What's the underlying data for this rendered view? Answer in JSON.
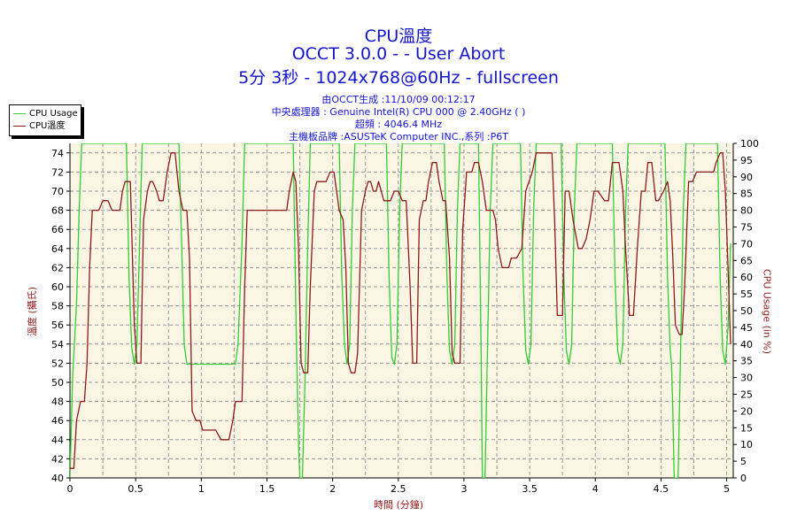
{
  "header": {
    "title": "CPU溫度",
    "subtitle1": "OCCT 3.0.0 -  - User Abort",
    "subtitle2": "5分 3秒 - 1024x768@60Hz - fullscreen",
    "info": [
      "由OCCT生成 :11/10/09 00:12:17",
      "中央處理器 : Genuine Intel(R) CPU 000 @ 2.40GHz ( )",
      "超頻 : 4046.4 MHz",
      "主機板品牌 :ASUSTeK Computer INC.,系列 :P6T"
    ]
  },
  "legend": {
    "items": [
      {
        "label": "CPU Usage",
        "color": "#33cc33"
      },
      {
        "label": "CPU溫度",
        "color": "#8b1a1a"
      }
    ]
  },
  "colors": {
    "title": "#1414c8",
    "plot_bg": "#fbf6e4",
    "grid": "#999999",
    "temp": "#8b1a1a",
    "usage": "#33cc33"
  },
  "chart_data": {
    "type": "line",
    "xlabel": "時間 (分鐘)",
    "ylabel_left": "溫度 (攝氏)",
    "ylabel_right": "CPU Usage (in %)",
    "xlim": [
      0,
      5.05
    ],
    "ylim_left": [
      40,
      75
    ],
    "ylim_right": [
      0,
      100
    ],
    "x_ticks": [
      "0",
      "0.5",
      "1",
      "1.5",
      "2",
      "2.5",
      "3",
      "3.5",
      "4",
      "4.5",
      "5"
    ],
    "y_left_ticks": [
      "40",
      "42",
      "44",
      "46",
      "48",
      "50",
      "52",
      "54",
      "56",
      "58",
      "60",
      "62",
      "64",
      "66",
      "68",
      "70",
      "72",
      "74"
    ],
    "y_right_ticks": [
      "0",
      "5",
      "10",
      "15",
      "20",
      "25",
      "30",
      "35",
      "40",
      "45",
      "50",
      "55",
      "60",
      "65",
      "70",
      "75",
      "80",
      "85",
      "90",
      "95",
      "100"
    ],
    "grid": true,
    "legend_position": "top-left",
    "series": [
      {
        "name": "CPU溫度",
        "axis": "left",
        "points": [
          [
            0.0,
            41
          ],
          [
            0.03,
            41
          ],
          [
            0.05,
            46
          ],
          [
            0.08,
            48
          ],
          [
            0.11,
            48
          ],
          [
            0.13,
            52
          ],
          [
            0.15,
            62
          ],
          [
            0.17,
            68
          ],
          [
            0.22,
            68
          ],
          [
            0.25,
            69
          ],
          [
            0.29,
            69
          ],
          [
            0.32,
            68
          ],
          [
            0.38,
            68
          ],
          [
            0.4,
            70
          ],
          [
            0.42,
            71
          ],
          [
            0.46,
            71
          ],
          [
            0.49,
            56
          ],
          [
            0.51,
            52
          ],
          [
            0.54,
            52
          ],
          [
            0.56,
            67
          ],
          [
            0.59,
            70
          ],
          [
            0.61,
            71
          ],
          [
            0.63,
            71
          ],
          [
            0.66,
            70
          ],
          [
            0.68,
            69
          ],
          [
            0.71,
            69
          ],
          [
            0.74,
            72
          ],
          [
            0.77,
            74
          ],
          [
            0.8,
            74
          ],
          [
            0.83,
            70
          ],
          [
            0.86,
            68
          ],
          [
            0.89,
            68
          ],
          [
            0.91,
            63
          ],
          [
            0.93,
            47
          ],
          [
            0.96,
            46
          ],
          [
            0.99,
            46
          ],
          [
            1.01,
            45
          ],
          [
            1.11,
            45
          ],
          [
            1.15,
            44
          ],
          [
            1.21,
            44
          ],
          [
            1.24,
            46
          ],
          [
            1.26,
            48
          ],
          [
            1.31,
            48
          ],
          [
            1.33,
            60
          ],
          [
            1.35,
            68
          ],
          [
            1.65,
            68
          ],
          [
            1.67,
            70
          ],
          [
            1.7,
            72
          ],
          [
            1.72,
            71
          ],
          [
            1.74,
            64
          ],
          [
            1.76,
            52
          ],
          [
            1.78,
            51
          ],
          [
            1.81,
            51
          ],
          [
            1.83,
            60
          ],
          [
            1.86,
            70
          ],
          [
            1.88,
            71
          ],
          [
            1.91,
            71
          ],
          [
            1.95,
            71
          ],
          [
            1.98,
            72
          ],
          [
            2.01,
            72
          ],
          [
            2.03,
            70
          ],
          [
            2.05,
            68
          ],
          [
            2.08,
            67
          ],
          [
            2.1,
            62
          ],
          [
            2.12,
            52
          ],
          [
            2.14,
            51
          ],
          [
            2.17,
            51
          ],
          [
            2.19,
            53
          ],
          [
            2.22,
            68
          ],
          [
            2.25,
            70
          ],
          [
            2.27,
            71
          ],
          [
            2.29,
            71
          ],
          [
            2.31,
            70
          ],
          [
            2.33,
            70
          ],
          [
            2.35,
            71
          ],
          [
            2.37,
            70
          ],
          [
            2.39,
            69
          ],
          [
            2.42,
            69
          ],
          [
            2.44,
            69
          ],
          [
            2.47,
            70
          ],
          [
            2.5,
            70
          ],
          [
            2.53,
            69
          ],
          [
            2.56,
            69
          ],
          [
            2.59,
            60
          ],
          [
            2.61,
            52
          ],
          [
            2.64,
            52
          ],
          [
            2.66,
            67
          ],
          [
            2.69,
            69
          ],
          [
            2.71,
            69
          ],
          [
            2.73,
            71
          ],
          [
            2.76,
            73
          ],
          [
            2.79,
            73
          ],
          [
            2.81,
            71
          ],
          [
            2.84,
            69
          ],
          [
            2.86,
            69
          ],
          [
            2.89,
            63
          ],
          [
            2.91,
            53
          ],
          [
            2.93,
            52
          ],
          [
            2.97,
            52
          ],
          [
            2.99,
            66
          ],
          [
            3.02,
            72
          ],
          [
            3.06,
            72
          ],
          [
            3.08,
            73
          ],
          [
            3.11,
            73
          ],
          [
            3.14,
            71
          ],
          [
            3.17,
            68
          ],
          [
            3.19,
            68
          ],
          [
            3.22,
            68
          ],
          [
            3.24,
            67
          ],
          [
            3.26,
            64
          ],
          [
            3.29,
            62
          ],
          [
            3.34,
            62
          ],
          [
            3.36,
            63
          ],
          [
            3.4,
            63
          ],
          [
            3.44,
            64
          ],
          [
            3.47,
            70
          ],
          [
            3.52,
            72
          ],
          [
            3.55,
            74
          ],
          [
            3.67,
            74
          ],
          [
            3.69,
            67
          ],
          [
            3.71,
            57
          ],
          [
            3.75,
            57
          ],
          [
            3.77,
            70
          ],
          [
            3.8,
            70
          ],
          [
            3.83,
            67
          ],
          [
            3.87,
            64
          ],
          [
            3.9,
            64
          ],
          [
            3.93,
            65
          ],
          [
            3.96,
            67
          ],
          [
            3.99,
            70
          ],
          [
            4.02,
            70
          ],
          [
            4.07,
            69
          ],
          [
            4.1,
            69
          ],
          [
            4.13,
            73
          ],
          [
            4.18,
            73
          ],
          [
            4.21,
            70
          ],
          [
            4.23,
            64
          ],
          [
            4.26,
            57
          ],
          [
            4.29,
            57
          ],
          [
            4.32,
            64
          ],
          [
            4.35,
            70
          ],
          [
            4.38,
            70
          ],
          [
            4.4,
            73
          ],
          [
            4.43,
            73
          ],
          [
            4.46,
            69
          ],
          [
            4.48,
            69
          ],
          [
            4.52,
            70
          ],
          [
            4.55,
            71
          ],
          [
            4.57,
            69
          ],
          [
            4.59,
            63
          ],
          [
            4.61,
            56
          ],
          [
            4.64,
            55
          ],
          [
            4.66,
            55
          ],
          [
            4.68,
            60
          ],
          [
            4.71,
            71
          ],
          [
            4.74,
            71
          ],
          [
            4.77,
            72
          ],
          [
            4.9,
            72
          ],
          [
            4.92,
            73
          ],
          [
            4.95,
            74
          ],
          [
            4.97,
            74
          ],
          [
            4.99,
            70
          ],
          [
            5.01,
            62
          ],
          [
            5.03,
            54
          ]
        ]
      },
      {
        "name": "CPU Usage",
        "axis": "right",
        "points": [
          [
            0.0,
            0
          ],
          [
            0.02,
            30
          ],
          [
            0.05,
            52
          ],
          [
            0.07,
            80
          ],
          [
            0.09,
            100
          ],
          [
            0.43,
            100
          ],
          [
            0.45,
            60
          ],
          [
            0.47,
            39
          ],
          [
            0.49,
            34
          ],
          [
            0.51,
            40
          ],
          [
            0.53,
            70
          ],
          [
            0.55,
            100
          ],
          [
            0.83,
            100
          ],
          [
            0.85,
            70
          ],
          [
            0.87,
            40
          ],
          [
            0.89,
            34
          ],
          [
            1.26,
            34
          ],
          [
            1.28,
            40
          ],
          [
            1.31,
            70
          ],
          [
            1.33,
            100
          ],
          [
            1.7,
            100
          ],
          [
            1.72,
            50
          ],
          [
            1.74,
            10
          ],
          [
            1.75,
            0
          ],
          [
            1.77,
            0
          ],
          [
            1.79,
            30
          ],
          [
            1.81,
            70
          ],
          [
            1.83,
            100
          ],
          [
            2.05,
            100
          ],
          [
            2.07,
            60
          ],
          [
            2.09,
            40
          ],
          [
            2.11,
            34
          ],
          [
            2.13,
            40
          ],
          [
            2.15,
            80
          ],
          [
            2.17,
            100
          ],
          [
            2.41,
            100
          ],
          [
            2.43,
            60
          ],
          [
            2.45,
            36
          ],
          [
            2.47,
            34
          ],
          [
            2.49,
            40
          ],
          [
            2.51,
            80
          ],
          [
            2.53,
            100
          ],
          [
            2.85,
            100
          ],
          [
            2.87,
            60
          ],
          [
            2.89,
            38
          ],
          [
            2.91,
            34
          ],
          [
            2.93,
            40
          ],
          [
            2.95,
            80
          ],
          [
            2.97,
            100
          ],
          [
            3.11,
            100
          ],
          [
            3.13,
            40
          ],
          [
            3.14,
            0
          ],
          [
            3.16,
            0
          ],
          [
            3.18,
            40
          ],
          [
            3.2,
            80
          ],
          [
            3.22,
            100
          ],
          [
            3.43,
            100
          ],
          [
            3.45,
            60
          ],
          [
            3.47,
            38
          ],
          [
            3.49,
            34
          ],
          [
            3.51,
            40
          ],
          [
            3.53,
            80
          ],
          [
            3.55,
            100
          ],
          [
            3.74,
            100
          ],
          [
            3.76,
            60
          ],
          [
            3.78,
            38
          ],
          [
            3.8,
            34
          ],
          [
            3.82,
            40
          ],
          [
            3.84,
            80
          ],
          [
            3.86,
            100
          ],
          [
            4.13,
            100
          ],
          [
            4.15,
            60
          ],
          [
            4.17,
            38
          ],
          [
            4.19,
            34
          ],
          [
            4.21,
            40
          ],
          [
            4.23,
            80
          ],
          [
            4.25,
            100
          ],
          [
            4.53,
            100
          ],
          [
            4.55,
            60
          ],
          [
            4.57,
            38
          ],
          [
            4.58,
            34
          ],
          [
            4.59,
            20
          ],
          [
            4.6,
            0
          ],
          [
            4.63,
            0
          ],
          [
            4.65,
            40
          ],
          [
            4.67,
            80
          ],
          [
            4.69,
            100
          ],
          [
            4.93,
            100
          ],
          [
            4.95,
            60
          ],
          [
            4.97,
            38
          ],
          [
            4.99,
            34
          ],
          [
            5.01,
            45
          ],
          [
            5.03,
            70
          ]
        ]
      }
    ]
  }
}
